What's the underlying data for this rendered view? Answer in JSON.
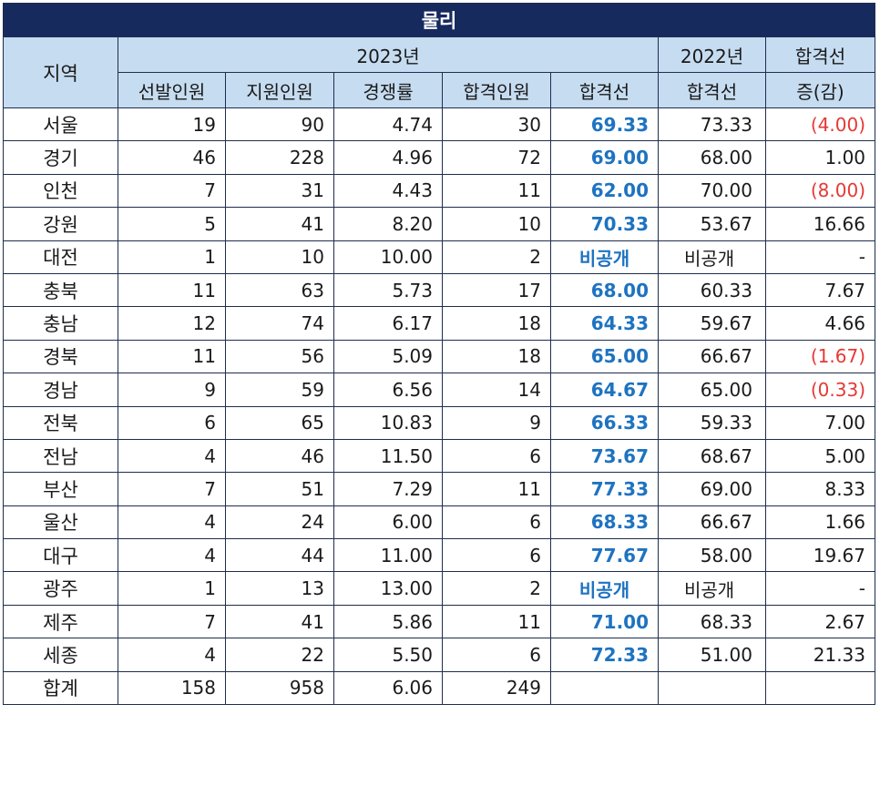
{
  "title": "물리",
  "header": {
    "region": "지역",
    "year2023": "2023년",
    "year2022": "2022년",
    "change": "합격선\n증(감)",
    "change_line1": "합격선",
    "change_line2": "증(감)",
    "cols2023": [
      "선발인원",
      "지원인원",
      "경쟁률",
      "합격인원",
      "합격선"
    ],
    "col2022": "합격선"
  },
  "rows": [
    {
      "region": "서울",
      "selected": "19",
      "applied": "90",
      "ratio": "4.74",
      "passed": "30",
      "cutoff": "69.33",
      "cutoff2022": "73.33",
      "change": "(4.00)",
      "negative": true
    },
    {
      "region": "경기",
      "selected": "46",
      "applied": "228",
      "ratio": "4.96",
      "passed": "72",
      "cutoff": "69.00",
      "cutoff2022": "68.00",
      "change": "1.00",
      "negative": false
    },
    {
      "region": "인천",
      "selected": "7",
      "applied": "31",
      "ratio": "4.43",
      "passed": "11",
      "cutoff": "62.00",
      "cutoff2022": "70.00",
      "change": "(8.00)",
      "negative": true
    },
    {
      "region": "강원",
      "selected": "5",
      "applied": "41",
      "ratio": "8.20",
      "passed": "10",
      "cutoff": "70.33",
      "cutoff2022": "53.67",
      "change": "16.66",
      "negative": false
    },
    {
      "region": "대전",
      "selected": "1",
      "applied": "10",
      "ratio": "10.00",
      "passed": "2",
      "cutoff": "비공개",
      "cutoff2022": "비공개",
      "change": "-",
      "negative": false,
      "undisclosed": true
    },
    {
      "region": "충북",
      "selected": "11",
      "applied": "63",
      "ratio": "5.73",
      "passed": "17",
      "cutoff": "68.00",
      "cutoff2022": "60.33",
      "change": "7.67",
      "negative": false
    },
    {
      "region": "충남",
      "selected": "12",
      "applied": "74",
      "ratio": "6.17",
      "passed": "18",
      "cutoff": "64.33",
      "cutoff2022": "59.67",
      "change": "4.66",
      "negative": false
    },
    {
      "region": "경북",
      "selected": "11",
      "applied": "56",
      "ratio": "5.09",
      "passed": "18",
      "cutoff": "65.00",
      "cutoff2022": "66.67",
      "change": "(1.67)",
      "negative": true
    },
    {
      "region": "경남",
      "selected": "9",
      "applied": "59",
      "ratio": "6.56",
      "passed": "14",
      "cutoff": "64.67",
      "cutoff2022": "65.00",
      "change": "(0.33)",
      "negative": true
    },
    {
      "region": "전북",
      "selected": "6",
      "applied": "65",
      "ratio": "10.83",
      "passed": "9",
      "cutoff": "66.33",
      "cutoff2022": "59.33",
      "change": "7.00",
      "negative": false
    },
    {
      "region": "전남",
      "selected": "4",
      "applied": "46",
      "ratio": "11.50",
      "passed": "6",
      "cutoff": "73.67",
      "cutoff2022": "68.67",
      "change": "5.00",
      "negative": false
    },
    {
      "region": "부산",
      "selected": "7",
      "applied": "51",
      "ratio": "7.29",
      "passed": "11",
      "cutoff": "77.33",
      "cutoff2022": "69.00",
      "change": "8.33",
      "negative": false
    },
    {
      "region": "울산",
      "selected": "4",
      "applied": "24",
      "ratio": "6.00",
      "passed": "6",
      "cutoff": "68.33",
      "cutoff2022": "66.67",
      "change": "1.66",
      "negative": false
    },
    {
      "region": "대구",
      "selected": "4",
      "applied": "44",
      "ratio": "11.00",
      "passed": "6",
      "cutoff": "77.67",
      "cutoff2022": "58.00",
      "change": "19.67",
      "negative": false
    },
    {
      "region": "광주",
      "selected": "1",
      "applied": "13",
      "ratio": "13.00",
      "passed": "2",
      "cutoff": "비공개",
      "cutoff2022": "비공개",
      "change": "-",
      "negative": false,
      "undisclosed": true
    },
    {
      "region": "제주",
      "selected": "7",
      "applied": "41",
      "ratio": "5.86",
      "passed": "11",
      "cutoff": "71.00",
      "cutoff2022": "68.33",
      "change": "2.67",
      "negative": false
    },
    {
      "region": "세종",
      "selected": "4",
      "applied": "22",
      "ratio": "5.50",
      "passed": "6",
      "cutoff": "72.33",
      "cutoff2022": "51.00",
      "change": "21.33",
      "negative": false
    }
  ],
  "total": {
    "region": "합계",
    "selected": "158",
    "applied": "958",
    "ratio": "6.06",
    "passed": "249"
  },
  "colors": {
    "title_bg": "#172a5e",
    "header_bg": "#c6dcf1",
    "cutoff_blue": "#1e73c0",
    "negative_red": "#e53935"
  }
}
